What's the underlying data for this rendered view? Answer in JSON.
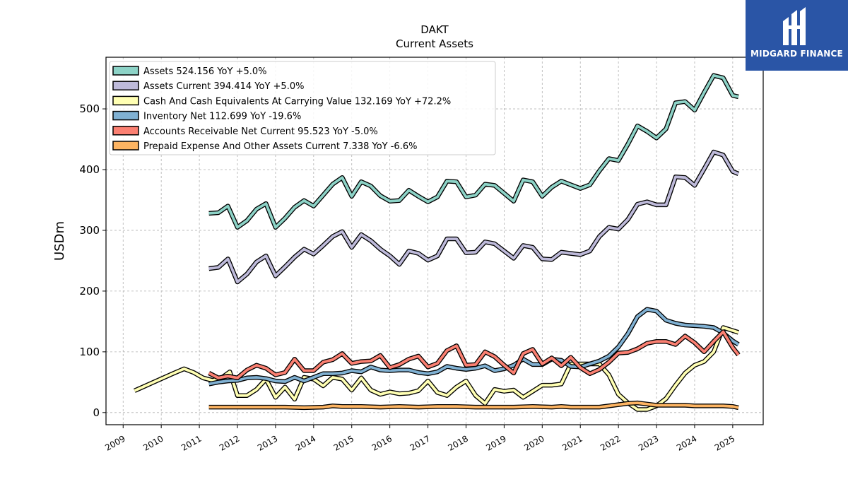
{
  "brand": {
    "name": "MIDGARD FINANCE",
    "color": "#2a55a6"
  },
  "chart_data": {
    "type": "line",
    "title": "DAKT",
    "subtitle": "Current  Assets",
    "xlabel": "",
    "ylabel": "USDm",
    "xlim": [
      2008.55,
      2025.8
    ],
    "ylim": [
      -20,
      585
    ],
    "yticks": [
      0,
      100,
      200,
      300,
      400,
      500
    ],
    "xticks": [
      "2009",
      "2010",
      "2011",
      "2012",
      "2013",
      "2014",
      "2015",
      "2016",
      "2017",
      "2018",
      "2019",
      "2020",
      "2021",
      "2022",
      "2023",
      "2024",
      "2025"
    ],
    "grid": true,
    "legend_position": "top-left",
    "series": [
      {
        "name": "Assets",
        "legend": "Assets  524.156 YoY +5.0%",
        "color": "#8dd3c7",
        "x": [
          2011.25,
          2011.5,
          2011.75,
          2012.0,
          2012.25,
          2012.5,
          2012.75,
          2013.0,
          2013.25,
          2013.5,
          2013.75,
          2014.0,
          2014.25,
          2014.5,
          2014.75,
          2015.0,
          2015.25,
          2015.5,
          2015.75,
          2016.0,
          2016.25,
          2016.5,
          2016.75,
          2017.0,
          2017.25,
          2017.5,
          2017.75,
          2018.0,
          2018.25,
          2018.5,
          2018.75,
          2019.0,
          2019.25,
          2019.5,
          2019.75,
          2020.0,
          2020.25,
          2020.5,
          2020.75,
          2021.0,
          2021.25,
          2021.5,
          2021.75,
          2022.0,
          2022.25,
          2022.5,
          2022.75,
          2023.0,
          2023.25,
          2023.5,
          2023.75,
          2024.0,
          2024.25,
          2024.5,
          2024.75,
          2025.0,
          2025.15
        ],
        "y": [
          328,
          329,
          340,
          305,
          316,
          335,
          344,
          305,
          320,
          338,
          349,
          340,
          358,
          376,
          387,
          356,
          380,
          373,
          357,
          348,
          349,
          366,
          356,
          347,
          355,
          381,
          380,
          355,
          358,
          376,
          374,
          361,
          348,
          383,
          380,
          356,
          371,
          381,
          375,
          369,
          375,
          398,
          418,
          415,
          442,
          472,
          463,
          452,
          467,
          510,
          512,
          498,
          527,
          555,
          551,
          522,
          520
        ]
      },
      {
        "name": "Assets Current",
        "legend": "Assets Current  394.414 YoY +5.0%",
        "color": "#bebada",
        "x": [
          2011.25,
          2011.5,
          2011.75,
          2012.0,
          2012.25,
          2012.5,
          2012.75,
          2013.0,
          2013.25,
          2013.5,
          2013.75,
          2014.0,
          2014.25,
          2014.5,
          2014.75,
          2015.0,
          2015.25,
          2015.5,
          2015.75,
          2016.0,
          2016.25,
          2016.5,
          2016.75,
          2017.0,
          2017.25,
          2017.5,
          2017.75,
          2018.0,
          2018.25,
          2018.5,
          2018.75,
          2019.0,
          2019.25,
          2019.5,
          2019.75,
          2020.0,
          2020.25,
          2020.5,
          2020.75,
          2021.0,
          2021.25,
          2021.5,
          2021.75,
          2022.0,
          2022.25,
          2022.5,
          2022.75,
          2023.0,
          2023.25,
          2023.5,
          2023.75,
          2024.0,
          2024.25,
          2024.5,
          2024.75,
          2025.0,
          2025.15
        ],
        "y": [
          237,
          239,
          253,
          215,
          228,
          248,
          258,
          225,
          240,
          256,
          269,
          261,
          275,
          290,
          298,
          272,
          293,
          283,
          269,
          258,
          244,
          266,
          262,
          251,
          258,
          286,
          286,
          263,
          264,
          281,
          278,
          266,
          254,
          275,
          272,
          253,
          252,
          264,
          262,
          260,
          266,
          290,
          305,
          302,
          318,
          343,
          347,
          342,
          342,
          388,
          387,
          374,
          401,
          429,
          424,
          397,
          393
        ]
      },
      {
        "name": "Cash And Cash Equivalents At Carrying Value",
        "legend": "Cash And Cash Equivalents At Carrying Value  132.169 YoY +72.2%",
        "color": "#ffffb3",
        "x": [
          2009.3,
          2009.55,
          2009.8,
          2010.05,
          2010.3,
          2010.6,
          2010.85,
          2011.1,
          2011.35,
          2011.6,
          2011.8,
          2012.0,
          2012.25,
          2012.5,
          2012.75,
          2013.0,
          2013.25,
          2013.5,
          2013.75,
          2014.0,
          2014.25,
          2014.5,
          2014.75,
          2015.0,
          2015.25,
          2015.5,
          2015.75,
          2016.0,
          2016.25,
          2016.5,
          2016.75,
          2017.0,
          2017.25,
          2017.5,
          2017.75,
          2018.0,
          2018.25,
          2018.5,
          2018.75,
          2019.0,
          2019.25,
          2019.5,
          2019.75,
          2020.0,
          2020.25,
          2020.5,
          2020.75,
          2021.0,
          2021.25,
          2021.5,
          2021.75,
          2022.0,
          2022.25,
          2022.5,
          2022.75,
          2023.0,
          2023.25,
          2023.5,
          2023.75,
          2024.0,
          2024.25,
          2024.5,
          2024.75,
          2025.0,
          2025.15
        ],
        "y": [
          36,
          43,
          50,
          57,
          64,
          72,
          66,
          57,
          53,
          58,
          67,
          28,
          28,
          38,
          55,
          25,
          42,
          22,
          58,
          55,
          44,
          58,
          55,
          37,
          57,
          37,
          30,
          34,
          31,
          32,
          36,
          52,
          33,
          28,
          42,
          52,
          28,
          15,
          38,
          35,
          37,
          25,
          35,
          45,
          45,
          47,
          80,
          80,
          80,
          80,
          62,
          30,
          16,
          5,
          5,
          11,
          23,
          45,
          65,
          78,
          84,
          100,
          140,
          135,
          132
        ]
      },
      {
        "name": "Inventory Net",
        "legend": "Inventory Net  112.699 YoY -19.6%",
        "color": "#80b1d3",
        "x": [
          2011.25,
          2011.5,
          2011.75,
          2012.0,
          2012.25,
          2012.5,
          2012.75,
          2013.0,
          2013.25,
          2013.5,
          2013.75,
          2014.0,
          2014.25,
          2014.5,
          2014.75,
          2015.0,
          2015.25,
          2015.5,
          2015.75,
          2016.0,
          2016.25,
          2016.5,
          2016.75,
          2017.0,
          2017.25,
          2017.5,
          2017.75,
          2018.0,
          2018.25,
          2018.5,
          2018.75,
          2019.0,
          2019.25,
          2019.5,
          2019.75,
          2020.0,
          2020.25,
          2020.5,
          2020.75,
          2021.0,
          2021.25,
          2021.5,
          2021.75,
          2022.0,
          2022.25,
          2022.5,
          2022.75,
          2023.0,
          2023.25,
          2023.5,
          2023.75,
          2024.0,
          2024.25,
          2024.5,
          2024.75,
          2025.0,
          2025.15
        ],
        "y": [
          47,
          50,
          52,
          53,
          57,
          58,
          56,
          52,
          51,
          58,
          52,
          58,
          64,
          64,
          65,
          69,
          67,
          75,
          70,
          69,
          70,
          70,
          66,
          64,
          67,
          76,
          73,
          71,
          73,
          77,
          69,
          72,
          78,
          88,
          79,
          79,
          88,
          86,
          76,
          75,
          80,
          85,
          93,
          108,
          130,
          158,
          170,
          167,
          152,
          147,
          144,
          143,
          142,
          140,
          131,
          118,
          112
        ]
      },
      {
        "name": "Accounts Receivable Net Current",
        "legend": "Accounts Receivable Net Current  95.523 YoY -5.0%",
        "color": "#fb8072",
        "x": [
          2011.25,
          2011.5,
          2011.75,
          2012.0,
          2012.25,
          2012.5,
          2012.75,
          2013.0,
          2013.25,
          2013.5,
          2013.75,
          2014.0,
          2014.25,
          2014.5,
          2014.75,
          2015.0,
          2015.25,
          2015.5,
          2015.75,
          2016.0,
          2016.25,
          2016.5,
          2016.75,
          2017.0,
          2017.25,
          2017.5,
          2017.75,
          2018.0,
          2018.25,
          2018.5,
          2018.75,
          2019.0,
          2019.25,
          2019.5,
          2019.75,
          2020.0,
          2020.25,
          2020.5,
          2020.75,
          2021.0,
          2021.25,
          2021.5,
          2021.75,
          2022.0,
          2022.25,
          2022.5,
          2022.75,
          2023.0,
          2023.25,
          2023.5,
          2023.75,
          2024.0,
          2024.25,
          2024.5,
          2024.75,
          2025.0,
          2025.15
        ],
        "y": [
          65,
          57,
          60,
          57,
          70,
          78,
          73,
          62,
          66,
          88,
          69,
          69,
          83,
          87,
          97,
          81,
          84,
          85,
          94,
          74,
          79,
          88,
          93,
          75,
          81,
          102,
          110,
          78,
          79,
          100,
          92,
          78,
          65,
          97,
          104,
          80,
          90,
          77,
          91,
          74,
          64,
          71,
          83,
          98,
          99,
          105,
          114,
          117,
          117,
          112,
          126,
          115,
          100,
          117,
          133,
          107,
          95
        ]
      },
      {
        "name": "Prepaid Expense And Other Assets Current",
        "legend": "Prepaid Expense And Other Assets Current  7.338 YoY -6.6%",
        "color": "#fdb462",
        "x": [
          2011.25,
          2011.75,
          2012.25,
          2012.75,
          2013.25,
          2013.75,
          2014.25,
          2014.5,
          2014.75,
          2015.25,
          2015.75,
          2016.25,
          2016.75,
          2017.25,
          2017.75,
          2018.25,
          2018.75,
          2019.25,
          2019.75,
          2020.25,
          2020.5,
          2020.75,
          2021.25,
          2021.5,
          2021.75,
          2022.0,
          2022.25,
          2022.5,
          2022.75,
          2023.0,
          2023.25,
          2023.5,
          2023.75,
          2024.0,
          2024.25,
          2024.5,
          2024.75,
          2025.0,
          2025.15
        ],
        "y": [
          9,
          9,
          9,
          9,
          9,
          8,
          9,
          11,
          10,
          10,
          9,
          10,
          9,
          10,
          10,
          9,
          9,
          9,
          10,
          9,
          10,
          9,
          9,
          9,
          11,
          13,
          15,
          16,
          14,
          12,
          12,
          12,
          12,
          11,
          11,
          11,
          11,
          10,
          8
        ]
      }
    ]
  }
}
